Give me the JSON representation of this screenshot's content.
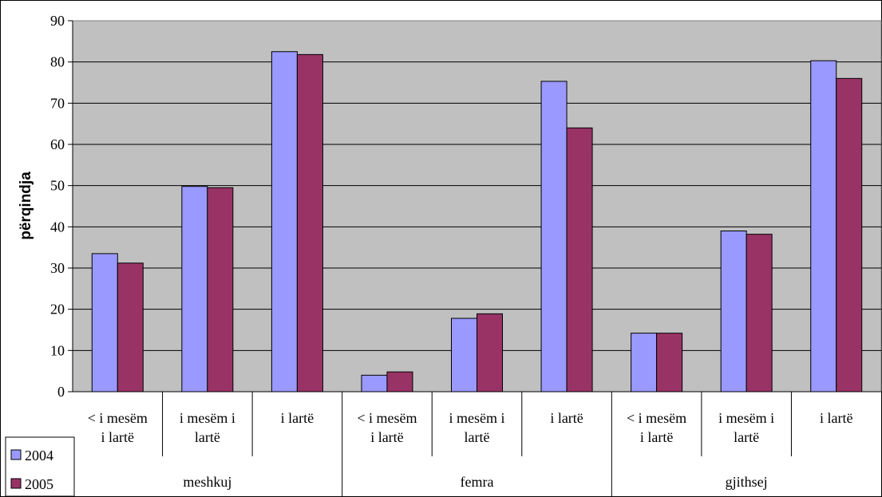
{
  "chart_data": {
    "type": "bar",
    "ylabel": "përqindja",
    "xlabel": "",
    "ylim": [
      0,
      90
    ],
    "yticks": [
      0,
      10,
      20,
      30,
      40,
      50,
      60,
      70,
      80,
      90
    ],
    "grid": true,
    "legend_position": "bottom-left",
    "groups": [
      {
        "label": "meshkuj",
        "categories": [
          [
            "< i mesëm",
            "i lartë"
          ],
          [
            "i mesëm i",
            "lartë"
          ],
          [
            "i  lartë"
          ]
        ]
      },
      {
        "label": "femra",
        "categories": [
          [
            "< i mesëm",
            "i lartë"
          ],
          [
            "i mesëm i",
            "lartë"
          ],
          [
            "i  lartë"
          ]
        ]
      },
      {
        "label": "gjithsej",
        "categories": [
          [
            "< i mesëm",
            "i lartë"
          ],
          [
            "i mesëm i",
            "lartë"
          ],
          [
            "i  lartë"
          ]
        ]
      }
    ],
    "series": [
      {
        "name": "2004",
        "color": "#9999FF",
        "values": [
          33.5,
          49.8,
          82.5,
          4.0,
          17.8,
          75.3,
          14.2,
          39.0,
          80.3
        ]
      },
      {
        "name": "2005",
        "color": "#993366",
        "values": [
          31.2,
          49.5,
          81.8,
          4.8,
          18.9,
          64.0,
          14.2,
          38.2,
          76.0
        ]
      }
    ],
    "plot_background": "#C0C0C0"
  }
}
